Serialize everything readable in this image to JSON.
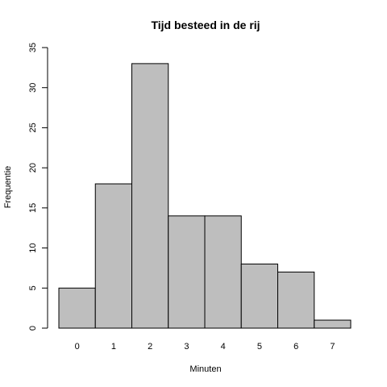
{
  "chart_data": {
    "type": "bar",
    "title": "Tijd besteed in de rij",
    "xlabel": "Minuten",
    "ylabel": "Frequentie",
    "categories": [
      "0",
      "1",
      "2",
      "3",
      "4",
      "5",
      "6",
      "7"
    ],
    "values": [
      5,
      18,
      33,
      14,
      14,
      8,
      7,
      1
    ],
    "ylim": [
      0,
      35
    ],
    "yticks": [
      0,
      5,
      10,
      15,
      20,
      25,
      30,
      35
    ],
    "bar_color": "#bebebe",
    "grid": false
  }
}
